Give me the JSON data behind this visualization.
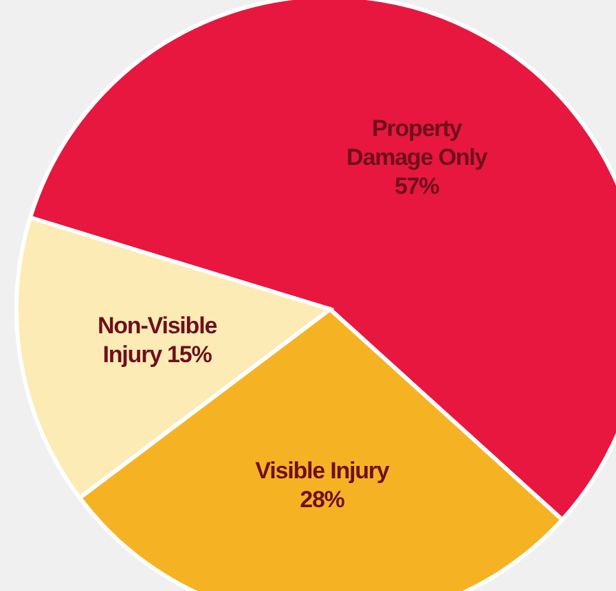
{
  "chart_data": {
    "type": "pie",
    "categories": [
      "Property Damage Only",
      "Visible Injury",
      "Non-Visible Injury"
    ],
    "values": [
      57,
      28,
      15
    ],
    "colors": [
      "#e8173f",
      "#f5b324",
      "#fdebb5"
    ],
    "data_labels": true,
    "value_labels": [
      "57%",
      "28%",
      "15%"
    ]
  }
}
